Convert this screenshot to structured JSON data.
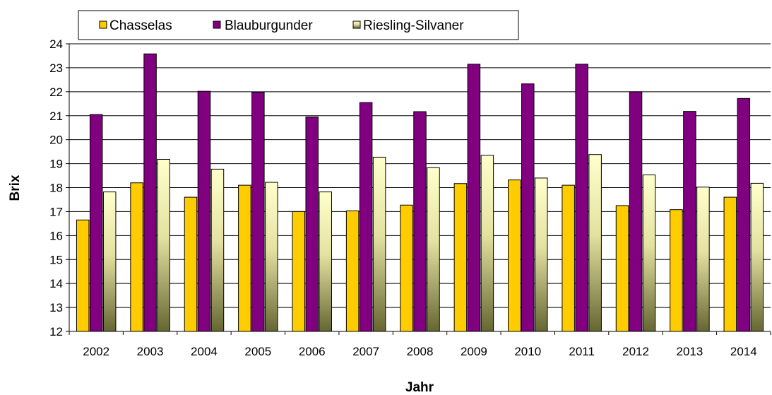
{
  "chart_data": {
    "type": "bar",
    "title": "",
    "xlabel": "Jahr",
    "ylabel": "Brix",
    "ylim": [
      12,
      24
    ],
    "yticks": [
      12,
      13,
      14,
      15,
      16,
      17,
      18,
      19,
      20,
      21,
      22,
      23,
      24
    ],
    "grid": "horizontal",
    "legend_position": "top",
    "categories": [
      "2002",
      "2003",
      "2004",
      "2005",
      "2006",
      "2007",
      "2008",
      "2009",
      "2010",
      "2011",
      "2012",
      "2013",
      "2014"
    ],
    "series": [
      {
        "name": "Chasselas",
        "color": "#FFCC00",
        "values": [
          16.65,
          18.2,
          17.6,
          18.1,
          17.0,
          17.03,
          17.27,
          18.17,
          18.32,
          18.1,
          17.25,
          17.08,
          17.6
        ]
      },
      {
        "name": "Blauburgunder",
        "color": "#800080",
        "values": [
          21.05,
          23.58,
          22.02,
          21.98,
          20.95,
          21.55,
          21.17,
          23.15,
          22.33,
          23.15,
          22.0,
          21.18,
          21.72
        ]
      },
      {
        "name": "Riesling-Silvaner",
        "color_top": "#FFFFCC",
        "color_bottom": "#666633",
        "values": [
          17.82,
          19.18,
          18.77,
          18.22,
          17.82,
          19.27,
          18.83,
          19.35,
          18.4,
          19.38,
          18.53,
          18.02,
          18.18
        ]
      }
    ]
  }
}
